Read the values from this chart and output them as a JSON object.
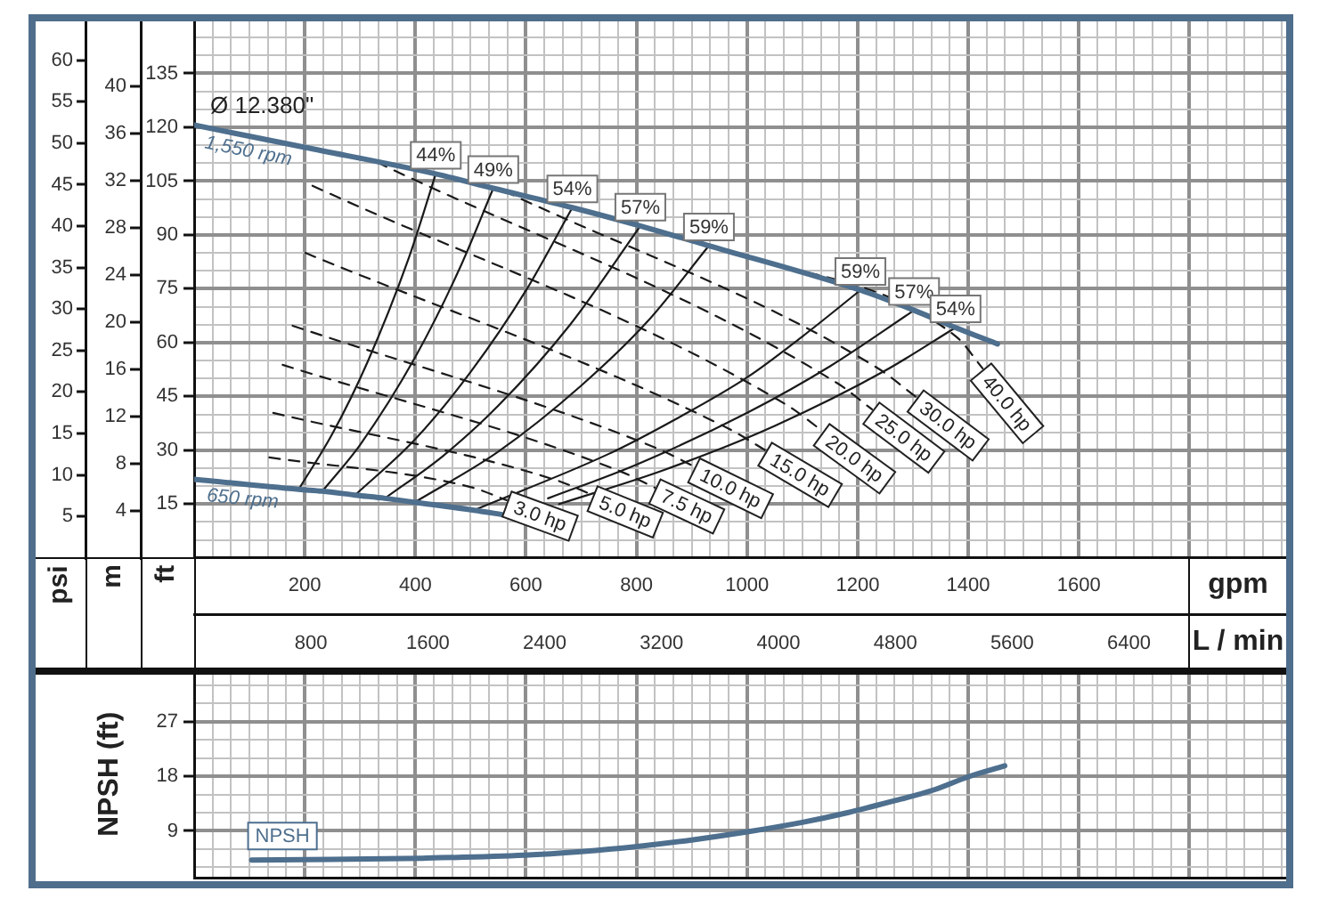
{
  "chart_data": [
    {
      "type": "line",
      "ylabel": "ft",
      "y2label": "psi",
      "y3label": "m",
      "xlabel": "gpm",
      "x2label": "L / min",
      "xlim": [
        0,
        1975
      ],
      "xticks": [
        {
          "value": 33.3,
          "label": null
        },
        {
          "value": 66.7,
          "label": null
        },
        {
          "value": 100,
          "label": null
        },
        {
          "value": 133.3,
          "label": null
        },
        {
          "value": 166.7,
          "label": null
        },
        200,
        {
          "value": 233.3,
          "label": null
        },
        {
          "value": 266.7,
          "label": null
        },
        {
          "value": 300,
          "label": null
        },
        {
          "value": 333.3,
          "label": null
        },
        {
          "value": 366.7,
          "label": null
        },
        400,
        {
          "value": 433.3,
          "label": null
        },
        {
          "value": 466.7,
          "label": null
        },
        {
          "value": 500,
          "label": null
        },
        {
          "value": 533.3,
          "label": null
        },
        {
          "value": 566.7,
          "label": null
        },
        600,
        {
          "value": 633.3,
          "label": null
        },
        {
          "value": 666.7,
          "label": null
        },
        {
          "value": 700,
          "label": null
        },
        {
          "value": 733.3,
          "label": null
        },
        {
          "value": 766.7,
          "label": null
        },
        800,
        {
          "value": 833.3,
          "label": null
        },
        {
          "value": 866.7,
          "label": null
        },
        {
          "value": 900,
          "label": null
        },
        {
          "value": 933.3,
          "label": null
        },
        {
          "value": 966.7,
          "label": null
        },
        1000,
        {
          "value": 1033.3,
          "label": null
        },
        {
          "value": 1066.7,
          "label": null
        },
        {
          "value": 1100,
          "label": null
        },
        {
          "value": 1133.3,
          "label": null
        },
        {
          "value": 1166.7,
          "label": null
        },
        1200,
        {
          "value": 1233.3,
          "label": null
        },
        {
          "value": 1266.7,
          "label": null
        },
        {
          "value": 1300,
          "label": null
        },
        {
          "value": 1333.3,
          "label": null
        },
        {
          "value": 1366.7,
          "label": null
        },
        1400,
        {
          "value": 1433.3,
          "label": null
        },
        {
          "value": 1466.7,
          "label": null
        },
        {
          "value": 1500,
          "label": null
        },
        {
          "value": 1533.3,
          "label": null
        },
        {
          "value": 1566.7,
          "label": null
        },
        1600,
        {
          "value": 1633.3,
          "label": null
        },
        {
          "value": 1666.7,
          "label": null
        },
        {
          "value": 1700,
          "label": null
        },
        {
          "value": 1733.3,
          "label": null
        },
        {
          "value": 1766.7,
          "label": null
        },
        {
          "value": 1800,
          "label": null
        },
        {
          "value": 1833.3,
          "label": null
        },
        {
          "value": 1866.7,
          "label": null
        },
        {
          "value": 1900,
          "label": null
        },
        {
          "value": 1933.3,
          "label": null
        },
        {
          "value": 1966.7,
          "label": null
        }
      ],
      "x2lim": [
        0,
        7476
      ],
      "x2ticks": [
        800,
        1600,
        2400,
        3200,
        4000,
        4800,
        5600,
        6400
      ],
      "ylim": [
        0,
        150
      ],
      "yticks": [
        {
          "value": 5,
          "label": null
        },
        {
          "value": 10,
          "label": null
        },
        15,
        {
          "value": 20,
          "label": null
        },
        {
          "value": 25,
          "label": null
        },
        30,
        {
          "value": 35,
          "label": null
        },
        {
          "value": 40,
          "label": null
        },
        45,
        {
          "value": 50,
          "label": null
        },
        {
          "value": 55,
          "label": null
        },
        60,
        {
          "value": 65,
          "label": null
        },
        {
          "value": 70,
          "label": null
        },
        75,
        {
          "value": 80,
          "label": null
        },
        {
          "value": 85,
          "label": null
        },
        90,
        {
          "value": 95,
          "label": null
        },
        {
          "value": 100,
          "label": null
        },
        105,
        {
          "value": 110,
          "label": null
        },
        {
          "value": 115,
          "label": null
        },
        120,
        {
          "value": 125,
          "label": null
        },
        {
          "value": 130,
          "label": null
        },
        135,
        {
          "value": 140,
          "label": null
        },
        {
          "value": 145,
          "label": null
        }
      ],
      "y2lim": [
        0,
        64.9
      ],
      "y2ticks": [
        5,
        10,
        15,
        20,
        25,
        30,
        35,
        40,
        45,
        50,
        55,
        60
      ],
      "y3lim": [
        0,
        45.7
      ],
      "y3ticks": [
        4,
        8,
        12,
        16,
        20,
        24,
        28,
        32,
        36,
        40
      ],
      "grid": true,
      "annotations": [
        {
          "text": "Ø 12.380\"",
          "x": 0,
          "y": 120.6
        }
      ],
      "series": [
        {
          "name": "1,550 rpm",
          "color": "#4e6f8e",
          "x": [
            0,
            200,
            437,
            541,
            684,
            807,
            931,
            1205,
            1302,
            1377,
            1453
          ],
          "values": [
            120.6,
            114.4,
            107.0,
            103.0,
            97.6,
            92.5,
            87.0,
            74.6,
            69.0,
            64.2,
            59.6
          ]
        },
        {
          "name": "650 rpm",
          "color": "#4e6f8e",
          "x": [
            0,
            189,
            232,
            291,
            345,
            399,
            506,
            560
          ],
          "values": [
            21.9,
            19.1,
            18.6,
            17.5,
            16.6,
            15.5,
            13.3,
            12.0
          ]
        },
        {
          "name": "44%",
          "color": "#1a1a1a",
          "x": [
            189,
            250,
            313,
            388,
            437
          ],
          "values": [
            19.1,
            34.6,
            54.4,
            83.5,
            107.0
          ]
        },
        {
          "name": "49%",
          "color": "#1a1a1a",
          "x": [
            232,
            300,
            400,
            480,
            541
          ],
          "values": [
            18.6,
            31.5,
            56.0,
            80.6,
            103.0
          ]
        },
        {
          "name": "54%",
          "color": "#1a1a1a",
          "x": [
            291,
            400,
            500,
            600,
            684
          ],
          "values": [
            17.5,
            33.1,
            51.8,
            74.5,
            97.6
          ]
        },
        {
          "name": "57%",
          "color": "#1a1a1a",
          "x": [
            345,
            450,
            550,
            680,
            807
          ],
          "values": [
            16.6,
            28.4,
            42.4,
            65.0,
            92.5
          ]
        },
        {
          "name": "59%",
          "color": "#1a1a1a",
          "x": [
            399,
            550,
            700,
            820,
            931
          ],
          "values": [
            15.5,
            29.6,
            48.0,
            65.9,
            87.0
          ]
        },
        {
          "name": "59%",
          "color": "#1a1a1a",
          "x": [
            506,
            750,
            870,
            1001,
            1100,
            1205
          ],
          "values": [
            13.3,
            29.0,
            38.6,
            50.4,
            61.7,
            74.6
          ]
        },
        {
          "name": "57%",
          "color": "#1a1a1a",
          "x": [
            640,
            800,
            1001,
            1150,
            1302
          ],
          "values": [
            16.6,
            26.0,
            40.5,
            53.4,
            69.0
          ]
        },
        {
          "name": "54%",
          "color": "#1a1a1a",
          "x": [
            660,
            850,
            1050,
            1250,
            1377
          ],
          "values": [
            15.0,
            24.5,
            36.8,
            52.2,
            64.2
          ]
        },
        {
          "name": "3.0 hp",
          "color": "#1a1a1a",
          "line_style": "dashed",
          "x": [
            136,
            501,
            565
          ],
          "values": [
            28.0,
            19.7,
            16.1
          ]
        },
        {
          "name": "5.0 hp",
          "color": "#1a1a1a",
          "line_style": "dashed",
          "x": [
            143,
            656,
            720
          ],
          "values": [
            40.4,
            21.6,
            17.6
          ]
        },
        {
          "name": "7.5 hp",
          "color": "#1a1a1a",
          "line_style": "dashed",
          "x": [
            160,
            768,
            833
          ],
          "values": [
            53.8,
            24.3,
            19.6
          ]
        },
        {
          "name": "10.0 hp",
          "color": "#1a1a1a",
          "line_style": "dashed",
          "x": [
            178,
            839,
            904
          ],
          "values": [
            64.7,
            30.4,
            25.5
          ]
        },
        {
          "name": "15.0 hp",
          "color": "#1a1a1a",
          "line_style": "dashed",
          "x": [
            201,
            968,
            1033
          ],
          "values": [
            85.0,
            35.9,
            30.0
          ]
        },
        {
          "name": "20.0 hp",
          "color": "#1a1a1a",
          "line_style": "dashed",
          "x": [
            214,
            1071,
            1136
          ],
          "values": [
            103.7,
            42.7,
            35.4
          ]
        },
        {
          "name": "25.0 hp",
          "color": "#1a1a1a",
          "line_style": "dashed",
          "x": [
            330,
            1162,
            1226
          ],
          "values": [
            110.3,
            48.8,
            41.4
          ]
        },
        {
          "name": "30.0 hp",
          "color": "#1a1a1a",
          "line_style": "dashed",
          "x": [
            560,
            1236,
            1306
          ],
          "values": [
            102.3,
            52.9,
            44.8
          ]
        },
        {
          "name": "40.0 hp",
          "color": "#1a1a1a",
          "line_style": "dashed",
          "x": [
            940,
            1378,
            1426
          ],
          "values": [
            86.6,
            61.7,
            52.8
          ]
        }
      ]
    },
    {
      "type": "line",
      "ylabel": "NPSH (ft)",
      "xlim": [
        0,
        1975
      ],
      "xticks": [
        {
          "value": 33.3,
          "label": null
        },
        {
          "value": 66.7,
          "label": null
        },
        {
          "value": 100,
          "label": null
        },
        {
          "value": 133.3,
          "label": null
        },
        {
          "value": 166.7,
          "label": null
        },
        200,
        {
          "value": 233.3,
          "label": null
        },
        {
          "value": 266.7,
          "label": null
        },
        {
          "value": 300,
          "label": null
        },
        {
          "value": 333.3,
          "label": null
        },
        {
          "value": 366.7,
          "label": null
        },
        400,
        {
          "value": 433.3,
          "label": null
        },
        {
          "value": 466.7,
          "label": null
        },
        {
          "value": 500,
          "label": null
        },
        {
          "value": 533.3,
          "label": null
        },
        {
          "value": 566.7,
          "label": null
        },
        600,
        {
          "value": 633.3,
          "label": null
        },
        {
          "value": 666.7,
          "label": null
        },
        {
          "value": 700,
          "label": null
        },
        {
          "value": 733.3,
          "label": null
        },
        {
          "value": 766.7,
          "label": null
        },
        800,
        {
          "value": 833.3,
          "label": null
        },
        {
          "value": 866.7,
          "label": null
        },
        {
          "value": 900,
          "label": null
        },
        {
          "value": 933.3,
          "label": null
        },
        {
          "value": 966.7,
          "label": null
        },
        1000,
        {
          "value": 1033.3,
          "label": null
        },
        {
          "value": 1066.7,
          "label": null
        },
        {
          "value": 1100,
          "label": null
        },
        {
          "value": 1133.3,
          "label": null
        },
        {
          "value": 1166.7,
          "label": null
        },
        1200,
        {
          "value": 1233.3,
          "label": null
        },
        {
          "value": 1266.7,
          "label": null
        },
        {
          "value": 1300,
          "label": null
        },
        {
          "value": 1333.3,
          "label": null
        },
        {
          "value": 1366.7,
          "label": null
        },
        1400,
        {
          "value": 1433.3,
          "label": null
        },
        {
          "value": 1466.7,
          "label": null
        },
        {
          "value": 1500,
          "label": null
        },
        {
          "value": 1533.3,
          "label": null
        },
        {
          "value": 1566.7,
          "label": null
        },
        1600,
        {
          "value": 1633.3,
          "label": null
        },
        {
          "value": 1666.7,
          "label": null
        },
        {
          "value": 1700,
          "label": null
        },
        {
          "value": 1733.3,
          "label": null
        },
        {
          "value": 1766.7,
          "label": null
        },
        {
          "value": 1800,
          "label": null
        },
        {
          "value": 1833.3,
          "label": null
        },
        {
          "value": 1866.7,
          "label": null
        },
        {
          "value": 1900,
          "label": null
        },
        {
          "value": 1933.3,
          "label": null
        },
        {
          "value": 1966.7,
          "label": null
        }
      ],
      "ylim": [
        1.3,
        35.3
      ],
      "yticks": [
        {
          "value": 3,
          "label": null
        },
        {
          "value": 6,
          "label": null
        },
        9,
        {
          "value": 12,
          "label": null
        },
        {
          "value": 15,
          "label": null
        },
        18,
        {
          "value": 21,
          "label": null
        },
        {
          "value": 24,
          "label": null
        },
        27,
        {
          "value": 30,
          "label": null
        },
        {
          "value": 33,
          "label": null
        }
      ],
      "grid": true,
      "tick_labels": "y",
      "series": [
        {
          "name": "NPSH",
          "color": "#4e6f8e",
          "x": [
            104,
            250,
            414,
            598,
            700,
            798,
            900,
            998,
            1100,
            1182,
            1260,
            1336,
            1400,
            1466
          ],
          "values": [
            4.2,
            4.3,
            4.5,
            5.0,
            5.6,
            6.4,
            7.5,
            8.8,
            10.4,
            12.0,
            13.8,
            15.7,
            17.9,
            19.7
          ]
        }
      ]
    }
  ]
}
